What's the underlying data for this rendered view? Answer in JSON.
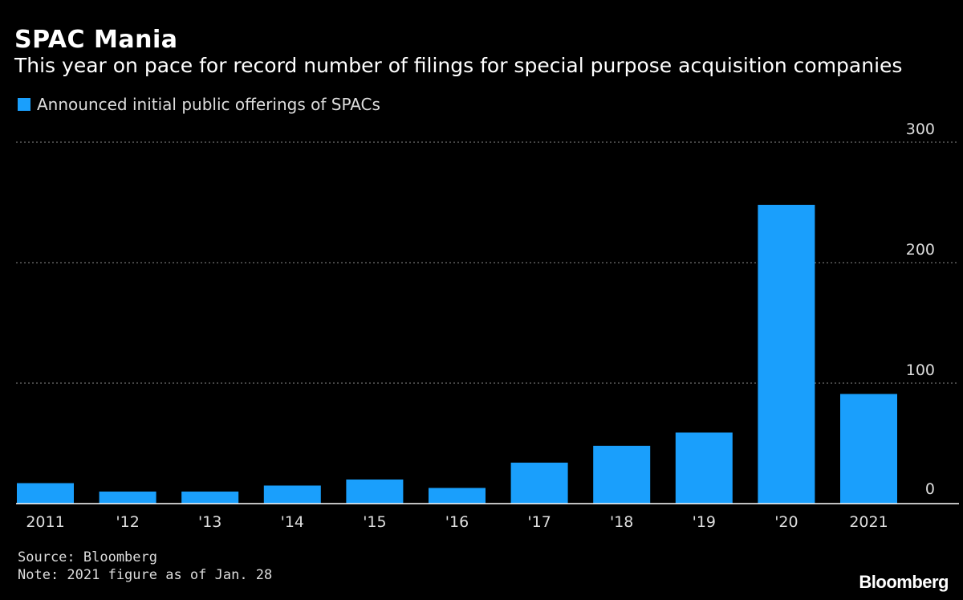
{
  "header": {
    "title": "SPAC Mania",
    "subtitle": "This year on pace for record number of filings for special purpose acquisition companies"
  },
  "legend": {
    "label": "Announced initial public offerings of SPACs",
    "color": "#1a9ffc"
  },
  "footer": {
    "source": "Source: Bloomberg",
    "note": "Note: 2021 figure as of Jan. 28"
  },
  "logo": {
    "text": "Bloomberg"
  },
  "chart_data": {
    "type": "bar",
    "title": "SPAC Mania",
    "subtitle": "This year on pace for record number of filings for special purpose acquisition companies",
    "categories": [
      "2011",
      "'12",
      "'13",
      "'14",
      "'15",
      "'16",
      "'17",
      "'18",
      "'19",
      "'20",
      "2021"
    ],
    "series": [
      {
        "name": "Announced initial public offerings of SPACs",
        "color": "#1a9ffc",
        "values": [
          17,
          10,
          10,
          15,
          20,
          13,
          34,
          48,
          59,
          248,
          91
        ]
      }
    ],
    "xlabel": "",
    "ylabel": "",
    "ylim": [
      0,
      300
    ],
    "yticks": [
      0,
      100,
      200,
      300
    ],
    "grid": true,
    "y_axis_side": "right",
    "legend_position": "top-left"
  }
}
